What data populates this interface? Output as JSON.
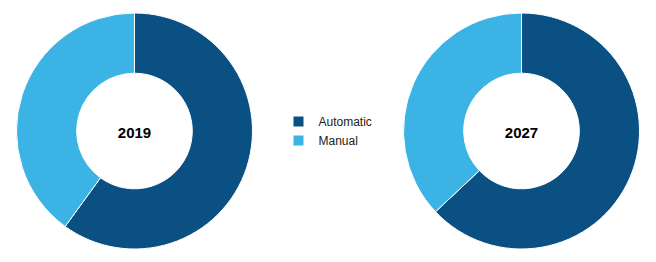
{
  "chart_data": [
    {
      "type": "pie",
      "title": "2019",
      "categories": [
        "Automatic",
        "Manual"
      ],
      "values": [
        60,
        40
      ],
      "colors": [
        "#0b5082",
        "#3bb3e4"
      ],
      "legend": "center"
    },
    {
      "type": "pie",
      "title": "2027",
      "categories": [
        "Automatic",
        "Manual"
      ],
      "values": [
        63,
        37
      ],
      "colors": [
        "#0b5082",
        "#3bb3e4"
      ]
    }
  ]
}
